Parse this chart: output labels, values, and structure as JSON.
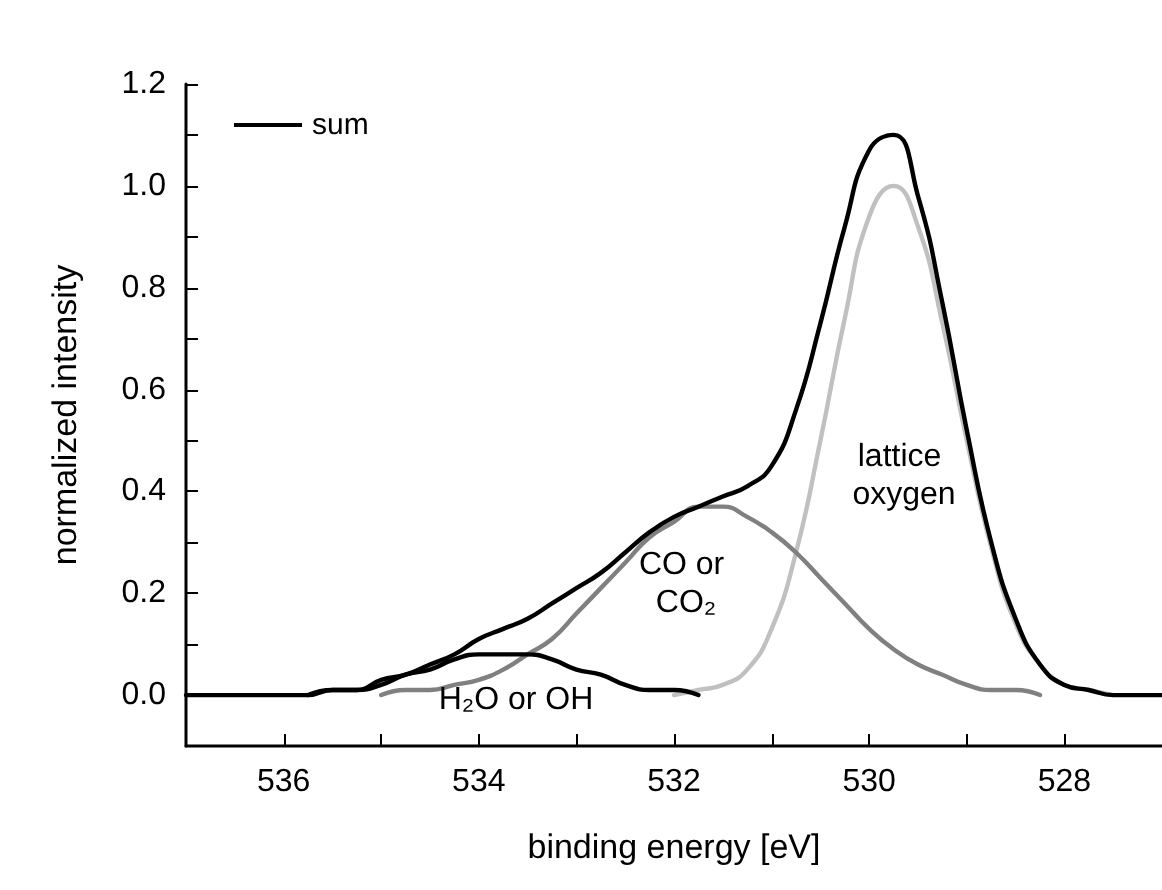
{
  "chart_data": {
    "type": "line",
    "xlabel": "binding energy [eV]",
    "ylabel": "normalized intensity",
    "x": [
      537,
      536.75,
      536.5,
      536.25,
      536,
      535.75,
      535.5,
      535.25,
      535,
      534.75,
      534.5,
      534.25,
      534,
      533.75,
      533.5,
      533.25,
      533,
      532.75,
      532.5,
      532.25,
      532,
      531.75,
      531.5,
      531.25,
      531,
      530.75,
      530.5,
      530.25,
      530,
      529.75,
      529.5,
      529.25,
      529,
      528.75,
      528.5,
      528.25,
      528,
      527.75,
      527.5,
      527.25,
      527
    ],
    "series": [
      {
        "color": "#c0c0c0",
        "values": [
          null,
          null,
          null,
          null,
          null,
          null,
          null,
          null,
          null,
          null,
          null,
          null,
          null,
          null,
          null,
          null,
          null,
          null,
          null,
          null,
          0,
          0.01,
          0.02,
          0.05,
          0.13,
          0.28,
          0.5,
          0.74,
          0.94,
          1.0,
          0.92,
          0.73,
          0.5,
          0.29,
          0.14,
          0.06,
          0.02,
          0.01,
          0,
          null,
          null
        ]
      },
      {
        "color": "#808080",
        "values": [
          null,
          null,
          null,
          null,
          null,
          null,
          null,
          null,
          0,
          0.01,
          0.01,
          0.02,
          0.03,
          0.05,
          0.08,
          0.11,
          0.16,
          0.21,
          0.26,
          0.31,
          0.34,
          0.37,
          0.37,
          0.35,
          0.32,
          0.28,
          0.23,
          0.18,
          0.13,
          0.09,
          0.06,
          0.04,
          0.02,
          0.01,
          0.01,
          0,
          null,
          null,
          null,
          null,
          null
        ]
      },
      {
        "color": "#000000",
        "values": [
          null,
          null,
          null,
          null,
          null,
          0,
          0.01,
          0.01,
          0.02,
          0.04,
          0.05,
          0.07,
          0.08,
          0.08,
          0.08,
          0.07,
          0.05,
          0.04,
          0.02,
          0.01,
          0.01,
          0,
          null,
          null,
          null,
          null,
          null,
          null,
          null,
          null,
          null,
          null,
          null,
          null,
          null,
          null,
          null,
          null,
          null,
          null,
          null
        ]
      },
      {
        "name": "sum",
        "color": "#000000",
        "values": [
          0,
          0,
          0,
          0,
          0,
          0,
          0.01,
          0.01,
          0.03,
          0.04,
          0.06,
          0.08,
          0.11,
          0.13,
          0.15,
          0.18,
          0.21,
          0.24,
          0.28,
          0.32,
          0.35,
          0.37,
          0.39,
          0.41,
          0.45,
          0.56,
          0.73,
          0.92,
          1.07,
          1.1,
          0.98,
          0.77,
          0.52,
          0.3,
          0.15,
          0.06,
          0.02,
          0.01,
          0,
          0,
          0
        ]
      }
    ],
    "annotations": [
      "H₂O or OH",
      "CO or CO₂",
      "lattice oxygen"
    ],
    "xlim": [
      537,
      527
    ],
    "xticks": [
      536,
      {
        "value": 535,
        "label": null
      },
      534,
      {
        "value": 533,
        "label": null
      },
      532,
      {
        "value": 531,
        "label": null
      },
      530,
      {
        "value": 529,
        "label": null
      },
      528
    ],
    "ylim": [
      -0.1,
      1.2
    ],
    "yticks": [
      {
        "value": 0,
        "label": "0.0"
      },
      {
        "value": 0.1,
        "label": null
      },
      {
        "value": 0.2,
        "label": "0.2"
      },
      {
        "value": 0.3,
        "label": null
      },
      {
        "value": 0.4,
        "label": "0.4"
      },
      {
        "value": 0.5,
        "label": null
      },
      {
        "value": 0.6,
        "label": "0.6"
      },
      {
        "value": 0.7,
        "label": null
      },
      {
        "value": 0.8,
        "label": "0.8"
      },
      {
        "value": 0.9,
        "label": null
      },
      {
        "value": 1,
        "label": "1.0"
      },
      {
        "value": 1.1,
        "label": null
      },
      {
        "value": 1.2,
        "label": "1.2"
      }
    ],
    "legend": "top left",
    "marker": "none",
    "line_style": "solid",
    "grid": false
  }
}
